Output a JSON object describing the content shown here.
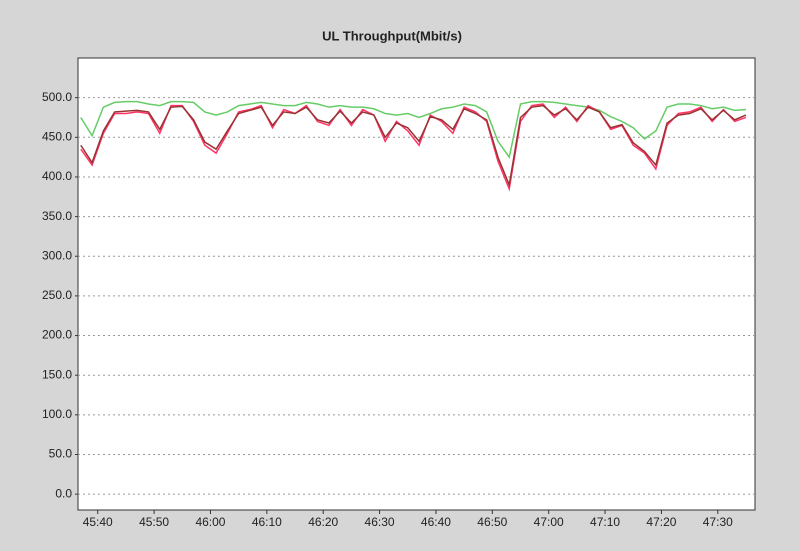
{
  "chart_data": {
    "type": "line",
    "title": "UL Throughput(Mbit/s)",
    "x": [
      2737,
      2739,
      2741,
      2743,
      2745,
      2747,
      2749,
      2751,
      2753,
      2755,
      2757,
      2759,
      2761,
      2763,
      2765,
      2767,
      2769,
      2771,
      2773,
      2775,
      2777,
      2779,
      2781,
      2783,
      2785,
      2787,
      2789,
      2791,
      2793,
      2795,
      2797,
      2799,
      2801,
      2803,
      2805,
      2807,
      2809,
      2811,
      2813,
      2815,
      2817,
      2819,
      2821,
      2823,
      2825,
      2827,
      2829,
      2831,
      2833,
      2835,
      2837,
      2839,
      2841,
      2843,
      2845,
      2847,
      2849,
      2851,
      2853,
      2855
    ],
    "series": [
      {
        "color": "#66cc66",
        "values": [
          475,
          452,
          488,
          494,
          495,
          495,
          492,
          490,
          495,
          495,
          494,
          482,
          478,
          482,
          490,
          492,
          494,
          492,
          490,
          490,
          494,
          492,
          488,
          490,
          488,
          488,
          486,
          480,
          478,
          480,
          475,
          480,
          486,
          488,
          492,
          490,
          482,
          445,
          425,
          492,
          495,
          495,
          494,
          492,
          490,
          488,
          484,
          476,
          470,
          462,
          448,
          458,
          488,
          492,
          492,
          490,
          486,
          488,
          484,
          485
        ]
      },
      {
        "color": "#ff3366",
        "values": [
          435,
          415,
          455,
          480,
          480,
          482,
          480,
          455,
          490,
          490,
          470,
          440,
          430,
          455,
          482,
          485,
          490,
          462,
          485,
          480,
          490,
          470,
          465,
          485,
          465,
          485,
          478,
          445,
          470,
          458,
          440,
          478,
          470,
          455,
          488,
          482,
          470,
          420,
          385,
          470,
          490,
          492,
          475,
          488,
          470,
          490,
          482,
          460,
          465,
          440,
          430,
          410,
          465,
          480,
          482,
          488,
          470,
          485,
          470,
          475
        ]
      },
      {
        "color": "#993333",
        "values": [
          440,
          418,
          458,
          482,
          483,
          484,
          482,
          460,
          488,
          489,
          472,
          444,
          435,
          458,
          480,
          484,
          488,
          465,
          482,
          480,
          488,
          472,
          468,
          483,
          468,
          482,
          478,
          450,
          468,
          462,
          445,
          476,
          472,
          460,
          486,
          480,
          472,
          425,
          390,
          475,
          488,
          490,
          478,
          486,
          472,
          488,
          482,
          462,
          466,
          443,
          432,
          415,
          468,
          478,
          480,
          486,
          472,
          484,
          472,
          478
        ]
      }
    ],
    "xlim": [
      2736.5,
      2856.6
    ],
    "xticks": [
      {
        "value": 2740,
        "label": "45:40"
      },
      {
        "value": 2750,
        "label": "45:50"
      },
      {
        "value": 2760,
        "label": "46:00"
      },
      {
        "value": 2770,
        "label": "46:10"
      },
      {
        "value": 2780,
        "label": "46:20"
      },
      {
        "value": 2790,
        "label": "46:30"
      },
      {
        "value": 2800,
        "label": "46:40"
      },
      {
        "value": 2810,
        "label": "46:50"
      },
      {
        "value": 2820,
        "label": "47:00"
      },
      {
        "value": 2830,
        "label": "47:10"
      },
      {
        "value": 2840,
        "label": "47:20"
      },
      {
        "value": 2850,
        "label": "47:30"
      }
    ],
    "ylim": [
      -20,
      550
    ],
    "yticks": [
      {
        "value": 0,
        "label": "0.0"
      },
      {
        "value": 50,
        "label": "50.0"
      },
      {
        "value": 100,
        "label": "100.0"
      },
      {
        "value": 150,
        "label": "150.0"
      },
      {
        "value": 200,
        "label": "200.0"
      },
      {
        "value": 250,
        "label": "250.0"
      },
      {
        "value": 300,
        "label": "300.0"
      },
      {
        "value": 350,
        "label": "350.0"
      },
      {
        "value": 400,
        "label": "400.0"
      },
      {
        "value": 450,
        "label": "450.0"
      },
      {
        "value": 500,
        "label": "500.0"
      }
    ],
    "grid": true
  }
}
